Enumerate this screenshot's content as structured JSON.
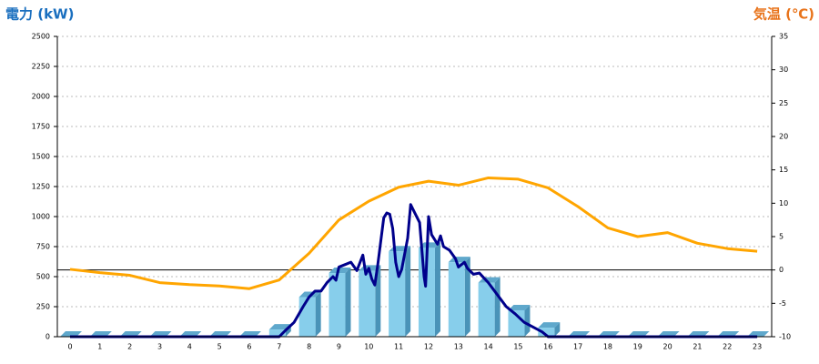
{
  "chart_data": {
    "type": "combo",
    "title_left": "電力 (kW)",
    "title_right": "気温 (℃)",
    "categories": [
      0,
      1,
      2,
      3,
      4,
      5,
      6,
      7,
      8,
      9,
      10,
      11,
      12,
      13,
      14,
      15,
      16,
      17,
      18,
      19,
      20,
      21,
      22,
      23
    ],
    "ylim": [
      0,
      2500
    ],
    "yticks": [
      0,
      250,
      500,
      750,
      1000,
      1250,
      1500,
      1750,
      2000,
      2250,
      2500
    ],
    "y2lim": [
      -10,
      35
    ],
    "y2ticks": [
      -10,
      -5,
      0,
      5,
      10,
      15,
      20,
      25,
      30,
      35
    ],
    "grid": true,
    "series": [
      {
        "type": "bar",
        "color": "#87ceeb",
        "values": [
          0,
          0,
          0,
          0,
          0,
          0,
          0,
          60,
          330,
          530,
          550,
          710,
          740,
          620,
          450,
          220,
          75,
          0,
          0,
          0,
          0,
          0,
          0,
          0
        ]
      },
      {
        "type": "line",
        "color": "#00008b",
        "x": [
          0,
          7,
          7.2,
          7.5,
          7.8,
          8,
          8.2,
          8.4,
          8.6,
          8.8,
          8.9,
          9,
          9.2,
          9.4,
          9.6,
          9.8,
          9.9,
          10,
          10.1,
          10.2,
          10.3,
          10.5,
          10.6,
          10.7,
          10.8,
          10.9,
          11,
          11.1,
          11.3,
          11.4,
          11.5,
          11.7,
          11.85,
          11.9,
          12,
          12.1,
          12.3,
          12.4,
          12.5,
          12.7,
          12.9,
          13,
          13.2,
          13.3,
          13.5,
          13.7,
          14,
          14.3,
          14.6,
          14.9,
          15.2,
          15.5,
          15.8,
          16,
          23
        ],
        "values": [
          0,
          0,
          50,
          120,
          250,
          330,
          380,
          380,
          450,
          500,
          470,
          580,
          600,
          620,
          550,
          680,
          520,
          570,
          480,
          430,
          600,
          990,
          1030,
          1020,
          900,
          620,
          500,
          560,
          820,
          1100,
          1050,
          950,
          500,
          420,
          1000,
          850,
          770,
          840,
          750,
          720,
          650,
          580,
          620,
          570,
          520,
          530,
          450,
          350,
          250,
          190,
          120,
          80,
          40,
          0,
          0
        ]
      },
      {
        "type": "line",
        "axis": "y2",
        "color": "#ffa500",
        "values": [
          0.1,
          -0.4,
          -0.8,
          -1.9,
          -2.2,
          -2.4,
          -2.8,
          -1.5,
          2.5,
          7.5,
          10.3,
          12.4,
          13.3,
          12.7,
          13.8,
          13.6,
          12.3,
          9.5,
          6.3,
          5.0,
          5.6,
          4.0,
          3.2,
          2.8
        ]
      }
    ]
  }
}
